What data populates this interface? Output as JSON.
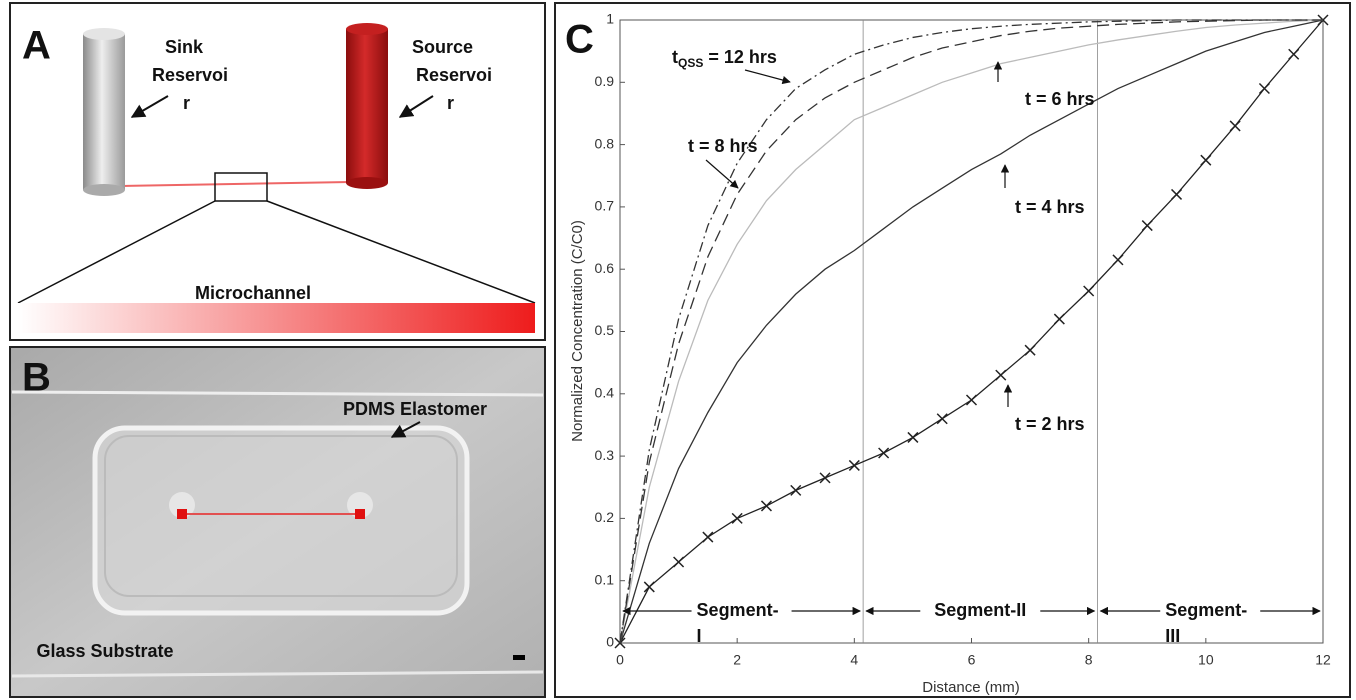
{
  "panel_a": {
    "label": "A",
    "sink": [
      "Sink",
      "Reservoi",
      "r"
    ],
    "source": [
      "Source",
      "Reservoi",
      "r"
    ],
    "channel": "Microchannel"
  },
  "panel_b": {
    "label": "B",
    "pdms": "PDMS Elastomer",
    "glass": "Glass Substrate"
  },
  "chart_data": {
    "type": "line",
    "panel_label": "C",
    "x_label": "Distance (mm)",
    "y_label": "Normalized Concentration (C/C0)",
    "xlim": [
      0,
      12
    ],
    "ylim": [
      0,
      1
    ],
    "xticks": [
      0,
      2,
      4,
      6,
      8,
      10,
      12
    ],
    "yticks": [
      0,
      0.1,
      0.2,
      0.3,
      0.4,
      0.5,
      0.6,
      0.7,
      0.8,
      0.9,
      1
    ],
    "vlines": [
      4.15,
      8.15
    ],
    "x": [
      0,
      0.5,
      1,
      1.5,
      2,
      2.5,
      3,
      3.5,
      4,
      4.5,
      5,
      5.5,
      6,
      6.5,
      7,
      7.5,
      8,
      8.5,
      9,
      9.5,
      10,
      10.5,
      11,
      11.5,
      12
    ],
    "series": [
      {
        "color": "#222222",
        "dash": "solid",
        "marker": "x",
        "values": [
          0,
          0.09,
          0.13,
          0.17,
          0.2,
          0.22,
          0.245,
          0.265,
          0.285,
          0.305,
          0.33,
          0.36,
          0.39,
          0.43,
          0.47,
          0.52,
          0.565,
          0.615,
          0.67,
          0.72,
          0.775,
          0.83,
          0.89,
          0.945,
          1
        ]
      },
      {
        "color": "#333333",
        "dash": "solid",
        "values": [
          0,
          0.16,
          0.28,
          0.37,
          0.45,
          0.51,
          0.56,
          0.6,
          0.63,
          0.665,
          0.7,
          0.73,
          0.76,
          0.785,
          0.815,
          0.84,
          0.865,
          0.89,
          0.91,
          0.93,
          0.95,
          0.965,
          0.98,
          0.99,
          1
        ]
      },
      {
        "color": "#bbbbbb",
        "dash": "solid",
        "values": [
          0,
          0.25,
          0.42,
          0.55,
          0.64,
          0.71,
          0.76,
          0.8,
          0.84,
          0.86,
          0.88,
          0.9,
          0.915,
          0.93,
          0.94,
          0.95,
          0.96,
          0.968,
          0.975,
          0.982,
          0.988,
          0.992,
          0.995,
          0.998,
          1
        ]
      },
      {
        "color": "#333333",
        "dash": "dashed",
        "values": [
          0,
          0.29,
          0.48,
          0.62,
          0.72,
          0.79,
          0.84,
          0.875,
          0.9,
          0.92,
          0.94,
          0.955,
          0.965,
          0.975,
          0.982,
          0.987,
          0.99,
          0.993,
          0.995,
          0.997,
          0.998,
          0.999,
          1,
          1,
          1
        ]
      },
      {
        "color": "#333333",
        "dash": "dashdot",
        "values": [
          0,
          0.31,
          0.52,
          0.67,
          0.77,
          0.84,
          0.89,
          0.92,
          0.945,
          0.96,
          0.972,
          0.98,
          0.986,
          0.99,
          0.993,
          0.995,
          0.997,
          0.998,
          0.999,
          1,
          1,
          1,
          1,
          1,
          1
        ]
      }
    ],
    "annotations": [
      {
        "text": "t = 2 hrs"
      },
      {
        "text": "t = 4 hrs"
      },
      {
        "text": "t = 6 hrs"
      },
      {
        "text": "t = 8 hrs"
      },
      {
        "text": "t",
        "sub": "QSS",
        "text_after": " = 12 hrs"
      }
    ],
    "segments": [
      [
        "Segment-",
        "I"
      ],
      [
        "Segment-II"
      ],
      [
        "Segment-",
        "III"
      ]
    ]
  }
}
